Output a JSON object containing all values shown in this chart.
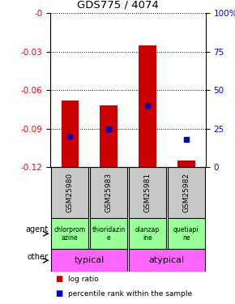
{
  "title": "GDS775 / 4074",
  "samples": [
    "GSM25980",
    "GSM25983",
    "GSM25981",
    "GSM25982"
  ],
  "log_ratios": [
    -0.068,
    -0.072,
    -0.025,
    -0.115
  ],
  "percentile_rank_vals": [
    0.2,
    0.25,
    0.4,
    0.18
  ],
  "ylim": [
    -0.12,
    0.0
  ],
  "yticks_left": [
    0.0,
    -0.03,
    -0.06,
    -0.09,
    -0.12
  ],
  "yticks_right": [
    100,
    75,
    50,
    25,
    0
  ],
  "agents": [
    "chlorprom\nazine",
    "thioridazin\ne",
    "olanzap\nine",
    "quetiapi\nne"
  ],
  "other_groups": [
    [
      "typical",
      2
    ],
    [
      "atypical",
      2
    ]
  ],
  "bar_color": "#cc0000",
  "dot_color": "#0000cc",
  "sample_bg": "#c8c8c8",
  "agent_bg": "#99ff99",
  "other_bg": "#ff66ff"
}
